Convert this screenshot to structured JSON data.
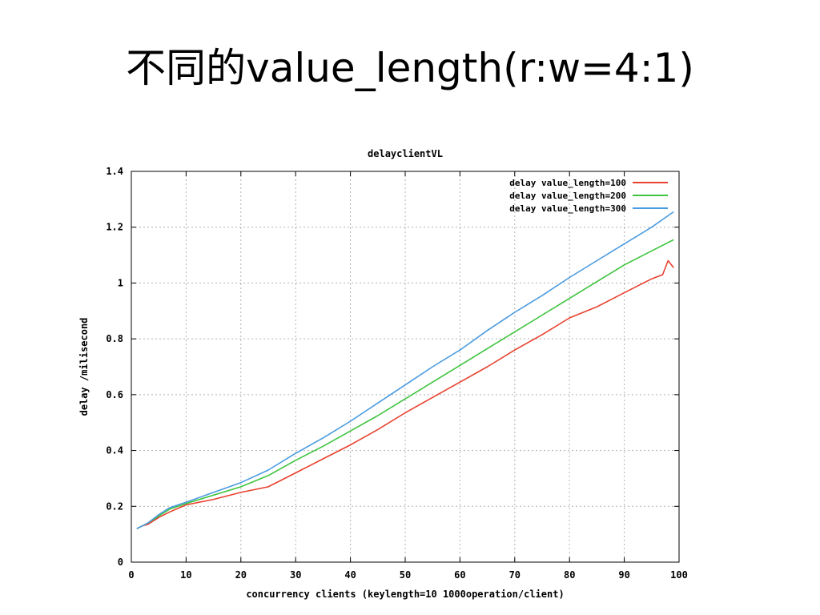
{
  "slide": {
    "title": "不同的value_length(r:w=4:1)"
  },
  "chart_data": {
    "type": "line",
    "title": "delayclientVL",
    "xlabel": "concurrency clients (keylength=10 1000operation/client)",
    "ylabel": "delay /milisecond",
    "xlim": [
      0,
      100
    ],
    "ylim": [
      0,
      1.4
    ],
    "xticks": [
      "0",
      "10",
      "20",
      "30",
      "40",
      "50",
      "60",
      "70",
      "80",
      "90",
      "100"
    ],
    "yticks": [
      "0",
      "0.2",
      "0.4",
      "0.6",
      "0.8",
      "1",
      "1.2",
      "1.4"
    ],
    "grid": true,
    "legend_position": "top-right",
    "series": [
      {
        "name": "delay value_length=100",
        "color": "#e8412f",
        "x": [
          1,
          2,
          3,
          5,
          7,
          10,
          15,
          20,
          25,
          30,
          35,
          40,
          45,
          50,
          55,
          60,
          65,
          70,
          75,
          80,
          85,
          90,
          95,
          97,
          98,
          99
        ],
        "y": [
          0.12,
          0.13,
          0.135,
          0.16,
          0.18,
          0.205,
          0.225,
          0.25,
          0.27,
          0.32,
          0.37,
          0.42,
          0.475,
          0.535,
          0.59,
          0.645,
          0.7,
          0.76,
          0.815,
          0.875,
          0.915,
          0.965,
          1.015,
          1.03,
          1.08,
          1.055
        ]
      },
      {
        "name": "delay value_length=200",
        "color": "#3fc43f",
        "x": [
          1,
          2,
          3,
          5,
          7,
          10,
          15,
          20,
          25,
          30,
          35,
          40,
          45,
          50,
          55,
          60,
          65,
          70,
          75,
          80,
          85,
          90,
          95,
          99
        ],
        "y": [
          0.12,
          0.13,
          0.14,
          0.165,
          0.19,
          0.21,
          0.24,
          0.27,
          0.31,
          0.365,
          0.415,
          0.47,
          0.525,
          0.585,
          0.645,
          0.705,
          0.765,
          0.825,
          0.885,
          0.945,
          1.005,
          1.065,
          1.115,
          1.155
        ]
      },
      {
        "name": "delay value_length=300",
        "color": "#4a9be0",
        "x": [
          1,
          2,
          3,
          5,
          7,
          10,
          15,
          20,
          25,
          30,
          35,
          40,
          45,
          50,
          55,
          60,
          65,
          70,
          75,
          80,
          85,
          90,
          95,
          99
        ],
        "y": [
          0.12,
          0.13,
          0.14,
          0.17,
          0.195,
          0.215,
          0.25,
          0.285,
          0.33,
          0.39,
          0.445,
          0.505,
          0.57,
          0.635,
          0.7,
          0.76,
          0.83,
          0.895,
          0.955,
          1.02,
          1.08,
          1.14,
          1.2,
          1.255
        ]
      }
    ]
  }
}
